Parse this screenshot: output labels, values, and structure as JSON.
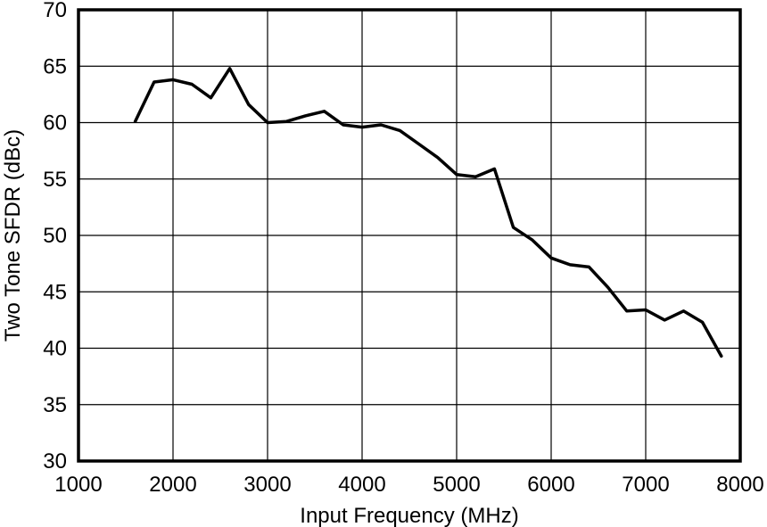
{
  "chart_data": {
    "type": "line",
    "title": "",
    "xlabel": "Input Frequency (MHz)",
    "ylabel": "Two Tone SFDR (dBc)",
    "xlim": [
      1000,
      8000
    ],
    "ylim": [
      30,
      70
    ],
    "xticks": [
      1000,
      2000,
      3000,
      4000,
      5000,
      6000,
      7000,
      8000
    ],
    "yticks": [
      30,
      35,
      40,
      45,
      50,
      55,
      60,
      65,
      70
    ],
    "grid": true,
    "legend": "none",
    "series": [
      {
        "color": "#000000",
        "x": [
          1600,
          1800,
          2000,
          2200,
          2400,
          2600,
          2800,
          3000,
          3200,
          3400,
          3600,
          3800,
          4000,
          4200,
          4400,
          4600,
          4800,
          5000,
          5200,
          5400,
          5600,
          5800,
          6000,
          6200,
          6400,
          6600,
          6800,
          7000,
          7200,
          7400,
          7600,
          7800
        ],
        "y": [
          60.1,
          63.6,
          63.8,
          63.4,
          62.2,
          64.8,
          61.6,
          60.0,
          60.1,
          60.6,
          61.0,
          59.8,
          59.6,
          59.8,
          59.3,
          58.1,
          56.9,
          55.4,
          55.2,
          55.9,
          50.7,
          49.6,
          48.0,
          47.4,
          47.2,
          45.4,
          43.3,
          43.4,
          42.5,
          43.3,
          42.3,
          39.3
        ]
      }
    ]
  }
}
